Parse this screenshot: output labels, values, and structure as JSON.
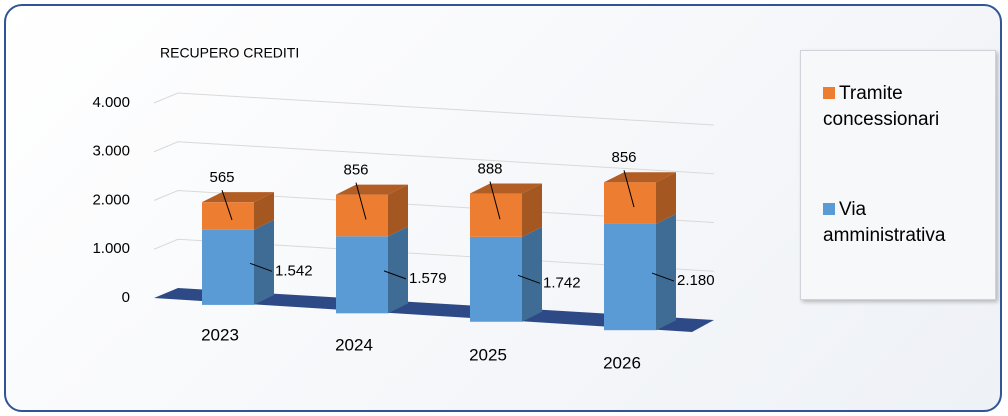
{
  "chart_data": {
    "type": "bar3d_stacked",
    "title": "RECUPERO CREDITI",
    "categories": [
      "2023",
      "2024",
      "2025",
      "2026"
    ],
    "series": [
      {
        "name": "Via amministrativa",
        "color": "#5b9bd5",
        "values": [
          1542,
          1579,
          1742,
          2180
        ],
        "value_labels": [
          "1.542",
          "1.579",
          "1.742",
          "2.180"
        ]
      },
      {
        "name": "Tramite concessionari",
        "color": "#ed7d31",
        "values": [
          565,
          856,
          888,
          856
        ]
      }
    ],
    "ylim": [
      0,
      4000
    ],
    "yticks": [
      0,
      {
        "value": 1000,
        "label": "1.000"
      },
      {
        "value": 2000,
        "label": "2.000"
      },
      {
        "value": 3000,
        "label": "3.000"
      },
      {
        "value": 4000,
        "label": "4.000"
      }
    ],
    "grid": true,
    "legend": "right"
  }
}
